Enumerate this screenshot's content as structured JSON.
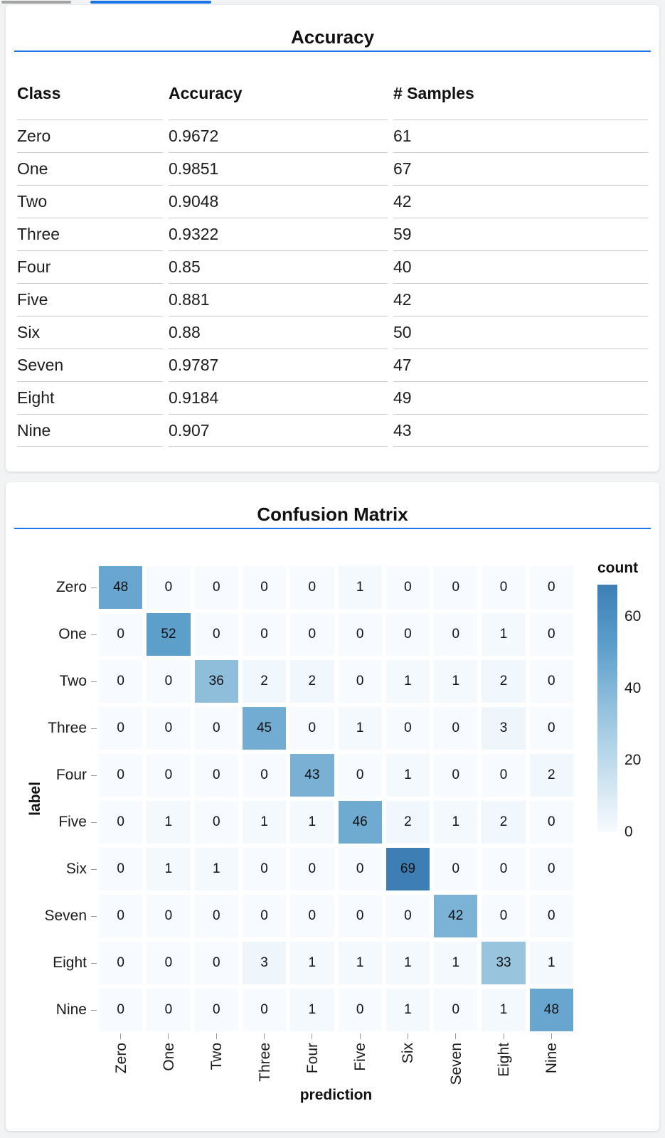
{
  "page": {
    "colors": {
      "accent_blue": "#1a73e8",
      "indicator_gray": "#a3a3a3",
      "background": "#f2f3f4",
      "card_background": "#ffffff"
    }
  },
  "accuracy_card": {
    "title": "Accuracy",
    "columns": [
      "Class",
      "Accuracy",
      "# Samples"
    ],
    "rows": [
      {
        "class": "Zero",
        "accuracy": "0.9672",
        "samples": "61"
      },
      {
        "class": "One",
        "accuracy": "0.9851",
        "samples": "67"
      },
      {
        "class": "Two",
        "accuracy": "0.9048",
        "samples": "42"
      },
      {
        "class": "Three",
        "accuracy": "0.9322",
        "samples": "59"
      },
      {
        "class": "Four",
        "accuracy": "0.85",
        "samples": "40"
      },
      {
        "class": "Five",
        "accuracy": "0.881",
        "samples": "42"
      },
      {
        "class": "Six",
        "accuracy": "0.88",
        "samples": "50"
      },
      {
        "class": "Seven",
        "accuracy": "0.9787",
        "samples": "47"
      },
      {
        "class": "Eight",
        "accuracy": "0.9184",
        "samples": "49"
      },
      {
        "class": "Nine",
        "accuracy": "0.907",
        "samples": "43"
      }
    ]
  },
  "confusion_card": {
    "title": "Confusion Matrix"
  },
  "chart_data": {
    "type": "heatmap",
    "title": "Confusion Matrix",
    "xlabel": "prediction",
    "ylabel": "label",
    "x_categories": [
      "Zero",
      "One",
      "Two",
      "Three",
      "Four",
      "Five",
      "Six",
      "Seven",
      "Eight",
      "Nine"
    ],
    "y_categories": [
      "Zero",
      "One",
      "Two",
      "Three",
      "Four",
      "Five",
      "Six",
      "Seven",
      "Eight",
      "Nine"
    ],
    "matrix": [
      [
        48,
        0,
        0,
        0,
        0,
        1,
        0,
        0,
        0,
        0
      ],
      [
        0,
        52,
        0,
        0,
        0,
        0,
        0,
        0,
        1,
        0
      ],
      [
        0,
        0,
        36,
        2,
        2,
        0,
        1,
        1,
        2,
        0
      ],
      [
        0,
        0,
        0,
        45,
        0,
        1,
        0,
        0,
        3,
        0
      ],
      [
        0,
        0,
        0,
        0,
        43,
        0,
        1,
        0,
        0,
        2
      ],
      [
        0,
        1,
        0,
        1,
        1,
        46,
        2,
        1,
        2,
        0
      ],
      [
        0,
        1,
        1,
        0,
        0,
        0,
        69,
        0,
        0,
        0
      ],
      [
        0,
        0,
        0,
        0,
        0,
        0,
        0,
        42,
        0,
        0
      ],
      [
        0,
        0,
        0,
        3,
        1,
        1,
        1,
        1,
        33,
        1
      ],
      [
        0,
        0,
        0,
        0,
        1,
        0,
        1,
        0,
        1,
        48
      ]
    ],
    "legend": {
      "title": "count",
      "ticks": [
        60,
        40,
        20,
        0
      ],
      "position": "right"
    },
    "color_domain": [
      0,
      69
    ],
    "color_ramp": [
      [
        0,
        "#f7fbff"
      ],
      [
        0.5,
        "#94c1dd"
      ],
      [
        0.75,
        "#5d9fcb"
      ],
      [
        1,
        "#3d7eb5"
      ]
    ],
    "grid": false
  }
}
